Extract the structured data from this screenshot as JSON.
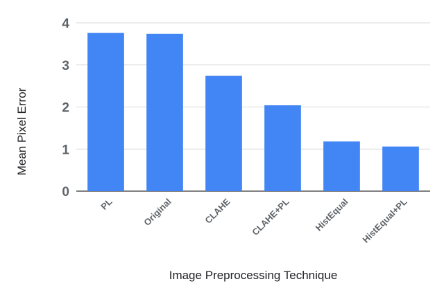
{
  "chart_data": {
    "type": "bar",
    "categories": [
      "PL",
      "Original",
      "CLAHE",
      "CLAHE+PL",
      "HistEqual",
      "HistEqual+PL"
    ],
    "values": [
      3.76,
      3.74,
      2.74,
      2.04,
      1.18,
      1.06
    ],
    "xlabel": "Image Preprocessing Technique",
    "ylabel": "Mean Pixel Error",
    "ylim": [
      0,
      4
    ],
    "yticks": [
      "0",
      "1",
      "2",
      "3",
      "4"
    ],
    "bar_color": "#4285f4",
    "grid": true,
    "legend": "none"
  }
}
